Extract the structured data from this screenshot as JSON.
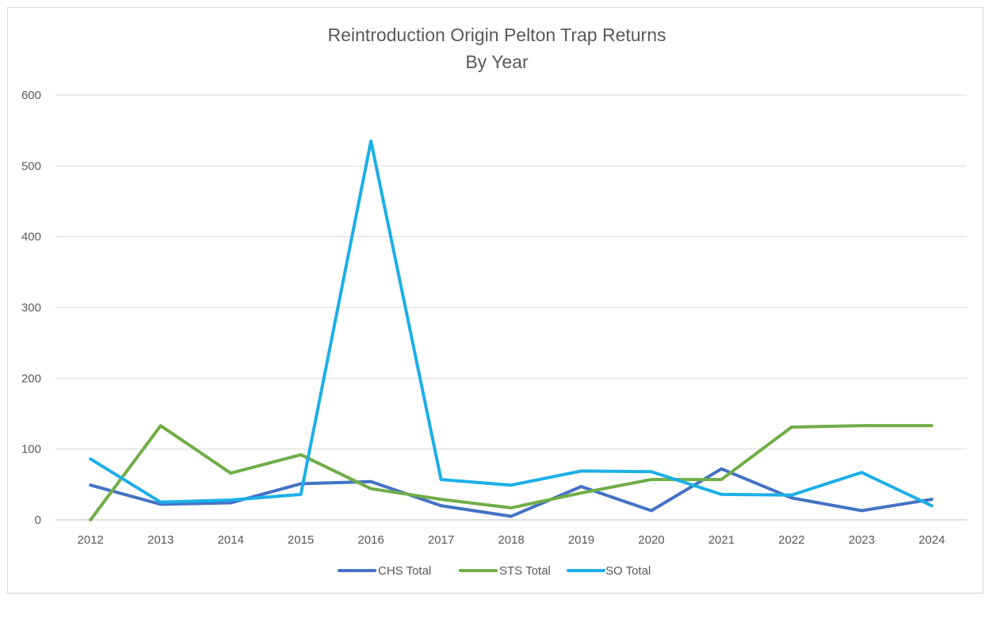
{
  "chart_data": {
    "type": "line",
    "title": [
      "Reintroduction Origin Pelton Trap Returns",
      "By Year"
    ],
    "xlabel": "",
    "ylabel": "",
    "categories": [
      "2012",
      "2013",
      "2014",
      "2015",
      "2016",
      "2017",
      "2018",
      "2019",
      "2020",
      "2021",
      "2022",
      "2023",
      "2024"
    ],
    "ylim": [
      0,
      600
    ],
    "yticks": [
      0,
      100,
      200,
      300,
      400,
      500,
      600
    ],
    "grid": true,
    "legend_position": "bottom",
    "series": [
      {
        "name": "CHS Total",
        "color": "#4472c4",
        "values": [
          49,
          22,
          24,
          51,
          54,
          20,
          5,
          47,
          13,
          72,
          31,
          13,
          29
        ]
      },
      {
        "name": "STS Total",
        "color": "#70ad47",
        "values": [
          0,
          133,
          66,
          92,
          44,
          29,
          17,
          38,
          57,
          57,
          131,
          133,
          133
        ]
      },
      {
        "name": "SO Total",
        "color": "#1cafe8",
        "values": [
          86,
          25,
          28,
          36,
          535,
          57,
          49,
          69,
          68,
          36,
          35,
          67,
          20
        ]
      }
    ]
  }
}
